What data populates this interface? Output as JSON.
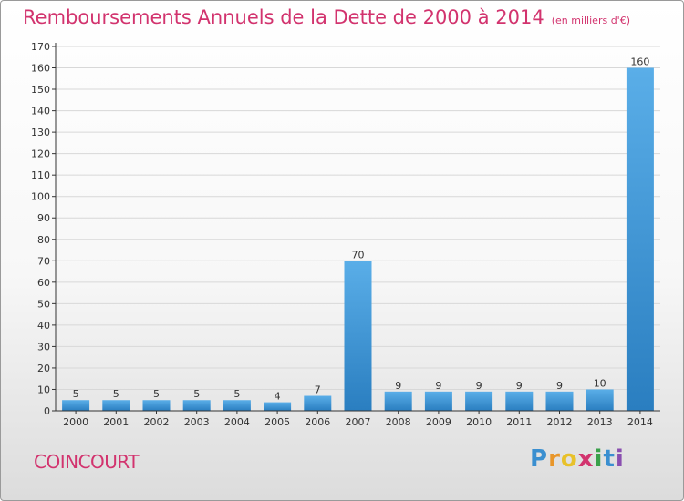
{
  "title": "Remboursements Annuels de la Dette de 2000 à 2014",
  "subtitle": "(en milliers d'€)",
  "place": "COINCOURT",
  "logo": {
    "letters": [
      "P",
      "r",
      "o",
      "x",
      "i",
      "t",
      "i"
    ],
    "colors": [
      "#3a8fd0",
      "#e8962a",
      "#e8c12a",
      "#d2336e",
      "#3aa04a",
      "#3a8fd0",
      "#8a4fb0"
    ]
  },
  "colors": {
    "bar_top": "#5aaee8",
    "bar_bottom": "#2a7ec0",
    "grid": "#d8d8d8",
    "axis": "#333333",
    "accent": "#d2336e"
  },
  "chart_data": {
    "type": "bar",
    "categories": [
      "2000",
      "2001",
      "2002",
      "2003",
      "2004",
      "2005",
      "2006",
      "2007",
      "2008",
      "2009",
      "2010",
      "2011",
      "2012",
      "2013",
      "2014"
    ],
    "values": [
      5,
      5,
      5,
      5,
      5,
      4,
      7,
      70,
      9,
      9,
      9,
      9,
      9,
      10,
      160
    ],
    "ylim": [
      0,
      170
    ],
    "yticks": [
      0,
      10,
      20,
      30,
      40,
      50,
      60,
      70,
      80,
      90,
      100,
      110,
      120,
      130,
      140,
      150,
      160,
      170
    ],
    "grid": true,
    "xlabel": "",
    "ylabel": ""
  }
}
